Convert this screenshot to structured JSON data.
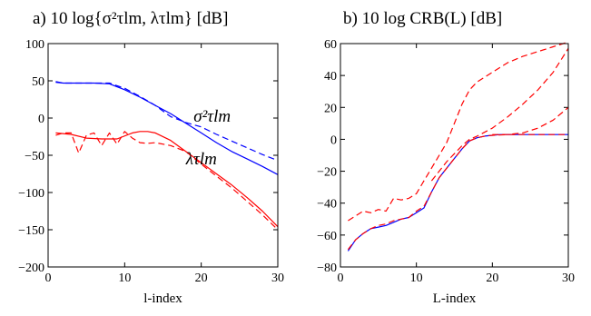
{
  "chart_data": [
    {
      "type": "line",
      "title": "a) 10 log{σ²τlm, λτlm} [dB]",
      "xlabel": "l-index",
      "ylabel": "",
      "xlim": [
        0,
        30
      ],
      "ylim": [
        -200,
        100
      ],
      "xticks": [
        0,
        10,
        20,
        30
      ],
      "yticks": [
        -200,
        -150,
        -100,
        -50,
        0,
        50,
        100
      ],
      "grid": false,
      "annotations": [
        {
          "text": "σ²τlm",
          "x": 19,
          "y": -5
        },
        {
          "text": "λτlm",
          "x": 18,
          "y": -62
        }
      ],
      "series": [
        {
          "color": "#0000ff",
          "dash": "solid",
          "x": [
            1,
            2,
            4,
            6,
            8,
            10,
            12,
            14,
            16,
            18,
            20,
            22,
            24,
            26,
            28,
            30
          ],
          "y": [
            48,
            47,
            47,
            47,
            46,
            38,
            28,
            17,
            6,
            -7,
            -20,
            -33,
            -45,
            -55,
            -65,
            -76
          ]
        },
        {
          "color": "#0000ff",
          "dash": "dashed",
          "x": [
            1,
            2,
            4,
            6,
            8,
            10,
            12,
            14,
            16,
            18,
            20,
            22,
            24,
            26,
            28,
            30
          ],
          "y": [
            49,
            47,
            47,
            47,
            47,
            40,
            29,
            17,
            2,
            -6,
            -12,
            -22,
            -31,
            -40,
            -49,
            -57
          ]
        },
        {
          "color": "#ff0000",
          "dash": "solid",
          "x": [
            1,
            3,
            5,
            7,
            9,
            11,
            12,
            13,
            14,
            16,
            18,
            20,
            22,
            24,
            26,
            28,
            30
          ],
          "y": [
            -20,
            -22,
            -27,
            -28,
            -28,
            -20,
            -18,
            -18,
            -20,
            -30,
            -45,
            -60,
            -75,
            -90,
            -107,
            -125,
            -146
          ]
        },
        {
          "color": "#ff0000",
          "dash": "dashed",
          "x": [
            1,
            2,
            3,
            4,
            5,
            6,
            7,
            8,
            9,
            10,
            11,
            12,
            13,
            14,
            16,
            18,
            20,
            22,
            24,
            26,
            28,
            30
          ],
          "y": [
            -23,
            -20,
            -20,
            -47,
            -23,
            -20,
            -37,
            -20,
            -35,
            -18,
            -27,
            -33,
            -34,
            -33,
            -37,
            -45,
            -62,
            -78,
            -94,
            -112,
            -130,
            -150
          ]
        }
      ]
    },
    {
      "type": "line",
      "title": "b) 10 log CRB(L) [dB]",
      "xlabel": "L-index",
      "ylabel": "",
      "xlim": [
        0,
        30
      ],
      "ylim": [
        -80,
        60
      ],
      "xticks": [
        0,
        10,
        20,
        30
      ],
      "yticks": [
        -80,
        -60,
        -40,
        -20,
        0,
        20,
        40,
        60
      ],
      "grid": false,
      "series": [
        {
          "color": "#0000ff",
          "dash": "solid",
          "x": [
            1,
            2,
            3,
            4,
            5,
            6,
            7,
            8,
            9,
            10,
            11,
            12,
            13,
            14,
            15,
            16,
            17,
            18,
            19,
            20,
            21,
            22,
            23,
            24,
            25,
            26,
            27,
            28,
            29,
            30
          ],
          "y": [
            -70,
            -63,
            -59,
            -56,
            -55,
            -54,
            -52,
            -50,
            -49,
            -46,
            -43,
            -33,
            -24,
            -18,
            -12,
            -6,
            -1,
            1,
            2,
            2.5,
            3,
            3,
            3,
            3,
            3,
            3,
            3,
            3,
            3,
            3
          ]
        },
        {
          "color": "#ff0000",
          "dash": "dashed",
          "x": [
            1,
            2,
            3,
            4,
            5,
            6,
            7,
            8,
            9,
            10,
            11,
            12,
            13,
            14,
            15,
            16,
            17,
            18,
            19,
            20,
            22,
            24,
            26,
            28,
            30
          ],
          "y": [
            -69,
            -63,
            -59,
            -56,
            -54,
            -53,
            -51,
            -50,
            -49,
            -45,
            -42,
            -33,
            -24,
            -18,
            -12,
            -6,
            -1,
            1,
            2,
            2.5,
            3,
            3,
            3,
            3,
            3
          ]
        },
        {
          "color": "#ff0000",
          "dash": "dashed",
          "x": [
            1,
            2,
            3,
            4,
            5,
            6,
            7,
            8,
            9,
            10,
            11,
            12,
            13,
            14,
            15,
            16,
            17,
            18,
            20,
            22,
            24,
            26,
            28,
            30
          ],
          "y": [
            -51,
            -48,
            -45,
            -46,
            -44,
            -45,
            -37,
            -38,
            -37,
            -34,
            -26,
            -18,
            -10,
            -2,
            10,
            22,
            31,
            36,
            42,
            48,
            52,
            55,
            58,
            61
          ]
        },
        {
          "color": "#ff0000",
          "dash": "dashed",
          "x": [
            12,
            14,
            16,
            17,
            18,
            20,
            22,
            24,
            26,
            28,
            30
          ],
          "y": [
            -26,
            -14,
            -4,
            0,
            2,
            7,
            14,
            22,
            31,
            42,
            57
          ]
        },
        {
          "color": "#ff0000",
          "dash": "dashed",
          "x": [
            20,
            22,
            24,
            26,
            28,
            30
          ],
          "y": [
            3,
            3,
            4,
            7,
            12,
            20
          ]
        }
      ]
    }
  ]
}
